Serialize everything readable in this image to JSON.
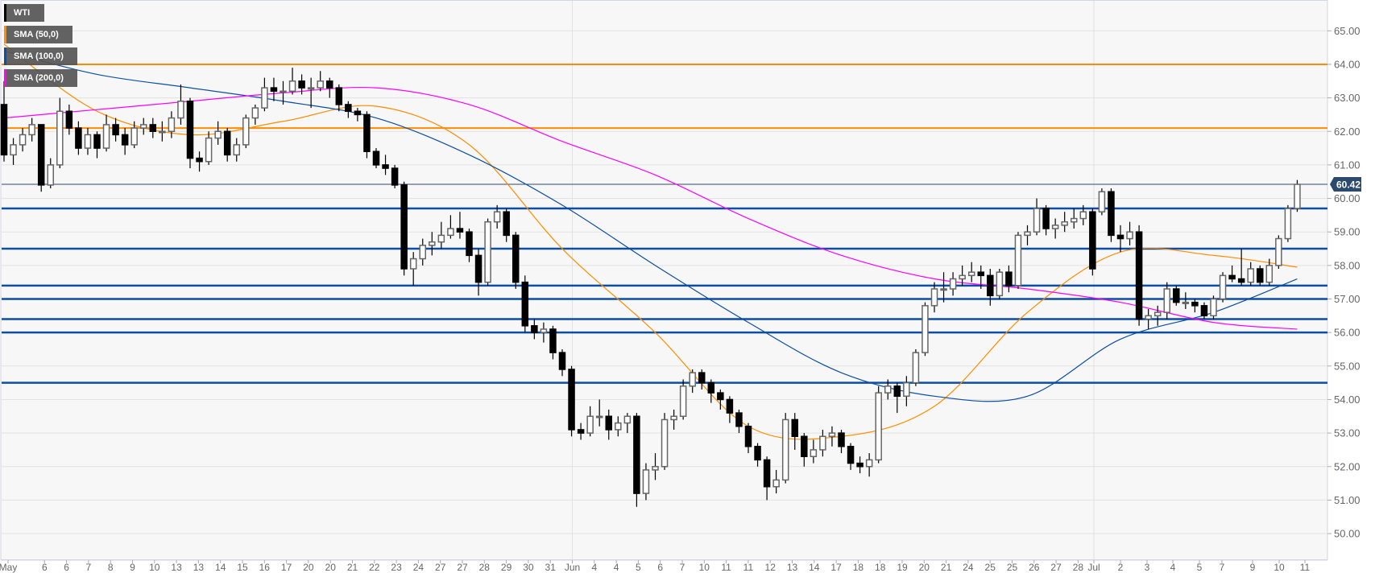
{
  "legend": [
    {
      "label": "WTI",
      "color": "#000000"
    },
    {
      "label": "SMA (50,0)",
      "color": "#ff8c00"
    },
    {
      "label": "SMA (100,0)",
      "color": "#0b4ea2"
    },
    {
      "label": "SMA (200,0)",
      "color": "#ff00ff"
    }
  ],
  "chart_data": {
    "type": "candlestick",
    "title": "",
    "ylim": [
      49.5,
      65.8
    ],
    "y_ticks": [
      "65.00",
      "64.00",
      "63.00",
      "62.00",
      "61.00",
      "60.00",
      "59.00",
      "58.00",
      "57.00",
      "56.00",
      "55.00",
      "54.00",
      "53.00",
      "52.00",
      "51.00",
      "50.00"
    ],
    "x_tick_labels": [
      "May",
      "6",
      "6",
      "7",
      "8",
      "9",
      "10",
      "13",
      "13",
      "14",
      "15",
      "16",
      "17",
      "20",
      "20",
      "21",
      "22",
      "23",
      "24",
      "27",
      "27",
      "28",
      "29",
      "30",
      "31",
      "Jun",
      "4",
      "4",
      "5",
      "6",
      "7",
      "10",
      "11",
      "11",
      "12",
      "13",
      "14",
      "17",
      "18",
      "18",
      "19",
      "20",
      "21",
      "24",
      "25",
      "25",
      "26",
      "27",
      "28",
      "Jul",
      "2",
      "3",
      "4",
      "5",
      "7",
      "9",
      "10",
      "11"
    ],
    "grid": true,
    "last_price": {
      "label": "60.42",
      "value": 60.42,
      "color": "#2c4a6e"
    },
    "levels": [
      {
        "value": 64.0,
        "color": "#ff8c00"
      },
      {
        "value": 62.1,
        "color": "#ff8c00"
      },
      {
        "value": 59.7,
        "color": "#0b4ea2"
      },
      {
        "value": 58.5,
        "color": "#0b4ea2"
      },
      {
        "value": 57.4,
        "color": "#0b4ea2"
      },
      {
        "value": 57.0,
        "color": "#0b4ea2"
      },
      {
        "value": 56.4,
        "color": "#0b4ea2"
      },
      {
        "value": 56.0,
        "color": "#0b4ea2"
      },
      {
        "value": 54.5,
        "color": "#0b4ea2"
      }
    ],
    "candles_ohlc": [
      [
        62.8,
        63.5,
        61.1,
        61.3
      ],
      [
        61.3,
        61.8,
        61.0,
        61.6
      ],
      [
        61.6,
        62.1,
        61.4,
        61.9
      ],
      [
        61.9,
        62.4,
        61.7,
        62.2
      ],
      [
        62.2,
        62.2,
        60.2,
        60.4
      ],
      [
        60.4,
        61.2,
        60.3,
        61.0
      ],
      [
        61.0,
        63.0,
        60.9,
        62.6
      ],
      [
        62.6,
        62.8,
        61.9,
        62.1
      ],
      [
        62.1,
        62.3,
        61.3,
        61.5
      ],
      [
        61.5,
        62.1,
        61.3,
        61.9
      ],
      [
        61.9,
        62.0,
        61.2,
        61.5
      ],
      [
        61.5,
        62.5,
        61.4,
        62.2
      ],
      [
        62.2,
        62.4,
        61.7,
        61.9
      ],
      [
        61.9,
        62.1,
        61.3,
        61.6
      ],
      [
        61.6,
        62.3,
        61.5,
        62.1
      ],
      [
        62.1,
        62.4,
        61.9,
        62.2
      ],
      [
        62.2,
        62.4,
        61.8,
        62.0
      ],
      [
        62.0,
        62.3,
        61.7,
        62.0
      ],
      [
        62.0,
        62.6,
        61.8,
        62.4
      ],
      [
        62.4,
        63.4,
        62.2,
        62.9
      ],
      [
        62.9,
        63.0,
        60.9,
        61.2
      ],
      [
        61.2,
        61.4,
        60.8,
        61.1
      ],
      [
        61.1,
        62.0,
        61.0,
        61.8
      ],
      [
        61.8,
        62.3,
        61.6,
        62.0
      ],
      [
        62.0,
        62.1,
        61.1,
        61.3
      ],
      [
        61.3,
        61.8,
        61.1,
        61.6
      ],
      [
        61.6,
        62.5,
        61.5,
        62.4
      ],
      [
        62.4,
        62.8,
        62.2,
        62.7
      ],
      [
        62.7,
        63.6,
        62.6,
        63.3
      ],
      [
        63.3,
        63.6,
        62.9,
        63.2
      ],
      [
        63.2,
        63.5,
        62.8,
        63.2
      ],
      [
        63.2,
        63.9,
        63.1,
        63.5
      ],
      [
        63.5,
        63.7,
        63.1,
        63.3
      ],
      [
        63.3,
        63.6,
        62.7,
        63.3
      ],
      [
        63.3,
        63.8,
        63.2,
        63.5
      ],
      [
        63.5,
        63.6,
        63.0,
        63.3
      ],
      [
        63.3,
        63.4,
        62.6,
        62.8
      ],
      [
        62.8,
        62.9,
        62.4,
        62.6
      ],
      [
        62.6,
        62.7,
        62.3,
        62.5
      ],
      [
        62.5,
        62.6,
        61.2,
        61.4
      ],
      [
        61.4,
        61.5,
        60.9,
        61.0
      ],
      [
        61.0,
        61.3,
        60.7,
        60.9
      ],
      [
        60.9,
        61.0,
        60.3,
        60.4
      ],
      [
        60.4,
        60.5,
        57.7,
        57.9
      ],
      [
        57.9,
        58.4,
        57.4,
        58.2
      ],
      [
        58.2,
        58.8,
        58.0,
        58.6
      ],
      [
        58.6,
        59.0,
        58.3,
        58.7
      ],
      [
        58.7,
        59.3,
        58.5,
        58.9
      ],
      [
        58.9,
        59.5,
        58.8,
        59.1
      ],
      [
        59.1,
        59.6,
        58.8,
        59.0
      ],
      [
        59.0,
        59.1,
        58.1,
        58.3
      ],
      [
        58.3,
        58.5,
        57.1,
        57.5
      ],
      [
        57.5,
        59.4,
        57.4,
        59.3
      ],
      [
        59.3,
        59.8,
        59.1,
        59.6
      ],
      [
        59.6,
        59.7,
        58.7,
        58.9
      ],
      [
        58.9,
        59.0,
        57.3,
        57.5
      ],
      [
        57.5,
        57.7,
        56.0,
        56.2
      ],
      [
        56.2,
        56.4,
        55.8,
        56.0
      ],
      [
        56.0,
        56.3,
        55.7,
        56.1
      ],
      [
        56.1,
        56.2,
        55.2,
        55.4
      ],
      [
        55.4,
        55.5,
        54.7,
        54.9
      ],
      [
        54.9,
        55.0,
        52.9,
        53.1
      ],
      [
        53.1,
        53.3,
        52.8,
        53.0
      ],
      [
        53.0,
        53.8,
        52.9,
        53.5
      ],
      [
        53.5,
        54.0,
        53.2,
        53.5
      ],
      [
        53.5,
        53.7,
        52.8,
        53.1
      ],
      [
        53.1,
        53.5,
        52.9,
        53.3
      ],
      [
        53.3,
        53.6,
        53.0,
        53.5
      ],
      [
        53.5,
        53.6,
        50.8,
        51.2
      ],
      [
        51.2,
        52.1,
        51.0,
        51.9
      ],
      [
        51.9,
        52.4,
        51.6,
        52.0
      ],
      [
        52.0,
        53.6,
        51.9,
        53.4
      ],
      [
        53.4,
        53.7,
        53.1,
        53.5
      ],
      [
        53.5,
        54.6,
        53.4,
        54.4
      ],
      [
        54.4,
        54.9,
        54.2,
        54.8
      ],
      [
        54.8,
        54.9,
        54.3,
        54.5
      ],
      [
        54.5,
        54.6,
        53.9,
        54.2
      ],
      [
        54.2,
        54.3,
        53.7,
        54.0
      ],
      [
        54.0,
        54.1,
        53.3,
        53.6
      ],
      [
        53.6,
        53.7,
        53.0,
        53.2
      ],
      [
        53.2,
        53.3,
        52.4,
        52.6
      ],
      [
        52.6,
        52.7,
        52.0,
        52.2
      ],
      [
        52.2,
        52.3,
        51.0,
        51.4
      ],
      [
        51.4,
        51.9,
        51.2,
        51.6
      ],
      [
        51.6,
        53.6,
        51.5,
        53.4
      ],
      [
        53.4,
        53.6,
        52.5,
        52.9
      ],
      [
        52.9,
        53.0,
        52.0,
        52.3
      ],
      [
        52.3,
        52.8,
        52.1,
        52.5
      ],
      [
        52.5,
        53.1,
        52.3,
        52.9
      ],
      [
        52.9,
        53.2,
        52.6,
        53.0
      ],
      [
        53.0,
        53.1,
        52.4,
        52.6
      ],
      [
        52.6,
        52.7,
        51.9,
        52.1
      ],
      [
        52.1,
        52.3,
        51.8,
        52.0
      ],
      [
        52.0,
        52.4,
        51.7,
        52.2
      ],
      [
        52.2,
        54.4,
        52.1,
        54.2
      ],
      [
        54.2,
        54.6,
        54.0,
        54.4
      ],
      [
        54.4,
        54.5,
        53.6,
        54.1
      ],
      [
        54.1,
        54.7,
        53.8,
        54.5
      ],
      [
        54.5,
        55.5,
        54.4,
        55.4
      ],
      [
        55.4,
        56.9,
        55.3,
        56.8
      ],
      [
        56.8,
        57.5,
        56.6,
        57.3
      ],
      [
        57.3,
        57.8,
        56.9,
        57.3
      ],
      [
        57.3,
        57.8,
        57.1,
        57.6
      ],
      [
        57.6,
        58.0,
        57.4,
        57.7
      ],
      [
        57.7,
        58.1,
        57.5,
        57.8
      ],
      [
        57.8,
        58.0,
        57.3,
        57.7
      ],
      [
        57.7,
        57.9,
        56.8,
        57.1
      ],
      [
        57.1,
        57.9,
        57.0,
        57.8
      ],
      [
        57.8,
        58.0,
        57.2,
        57.4
      ],
      [
        57.4,
        59.0,
        57.3,
        58.9
      ],
      [
        58.9,
        59.2,
        58.6,
        59.0
      ],
      [
        59.0,
        60.0,
        58.9,
        59.7
      ],
      [
        59.7,
        59.8,
        58.9,
        59.1
      ],
      [
        59.1,
        59.4,
        58.8,
        59.2
      ],
      [
        59.2,
        59.6,
        59.0,
        59.3
      ],
      [
        59.3,
        59.7,
        59.1,
        59.4
      ],
      [
        59.4,
        59.8,
        59.2,
        59.6
      ],
      [
        59.6,
        59.7,
        57.7,
        57.9
      ],
      [
        59.6,
        60.3,
        59.5,
        60.2
      ],
      [
        60.2,
        60.3,
        58.7,
        58.9
      ],
      [
        58.9,
        59.2,
        58.4,
        58.8
      ],
      [
        58.8,
        59.3,
        58.6,
        59.0
      ],
      [
        59.0,
        59.2,
        56.2,
        56.4
      ],
      [
        56.4,
        56.7,
        56.1,
        56.5
      ],
      [
        56.5,
        56.8,
        56.2,
        56.6
      ],
      [
        56.6,
        57.5,
        56.4,
        57.3
      ],
      [
        57.3,
        57.4,
        56.8,
        56.9
      ],
      [
        56.9,
        57.2,
        56.7,
        56.9
      ],
      [
        56.9,
        57.0,
        56.6,
        56.8
      ],
      [
        56.8,
        56.9,
        56.4,
        56.5
      ],
      [
        56.5,
        57.1,
        56.4,
        57.0
      ],
      [
        57.0,
        57.8,
        56.9,
        57.7
      ],
      [
        57.7,
        58.0,
        57.5,
        57.6
      ],
      [
        57.6,
        58.5,
        57.4,
        57.5
      ],
      [
        57.5,
        58.1,
        57.4,
        57.9
      ],
      [
        57.9,
        58.0,
        57.4,
        57.5
      ],
      [
        57.5,
        58.2,
        57.4,
        58.0
      ],
      [
        58.0,
        58.9,
        57.9,
        58.8
      ],
      [
        58.8,
        59.8,
        58.7,
        59.7
      ],
      [
        59.7,
        60.55,
        59.6,
        60.42
      ]
    ],
    "sma_sample_every_candles": 10,
    "series": [
      {
        "name": "SMA (50,0)",
        "color": "#ff8c00",
        "values": [
          64.6,
          62.6,
          61.9,
          62.3,
          62.75,
          61.6,
          58.5,
          56.0,
          53.2,
          52.9,
          53.8,
          56.6,
          58.4,
          58.3,
          57.95
        ]
      },
      {
        "name": "SMA (100,0)",
        "color": "#0b4ea2",
        "values": [
          64.4,
          63.7,
          63.3,
          62.9,
          62.4,
          61.3,
          59.8,
          58.0,
          56.3,
          54.8,
          54.1,
          54.1,
          55.8,
          56.6,
          57.6
        ]
      },
      {
        "name": "SMA (200,0)",
        "color": "#ff00ff",
        "values": [
          62.4,
          62.65,
          62.9,
          63.15,
          63.3,
          62.8,
          61.7,
          60.7,
          59.4,
          58.3,
          57.6,
          57.3,
          56.9,
          56.3,
          56.1
        ]
      }
    ]
  }
}
